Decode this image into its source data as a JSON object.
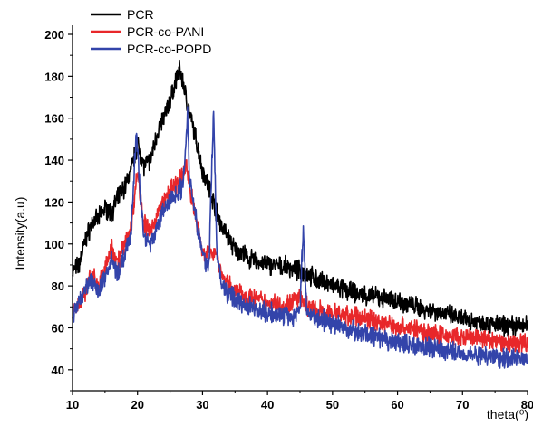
{
  "chart_data": {
    "type": "line",
    "title": "",
    "xlabel": "theta(⁰)",
    "ylabel": "Intensity(a.u)",
    "xlim": [
      10,
      80
    ],
    "ylim": [
      30,
      200
    ],
    "xticks": [
      "10",
      "20",
      "30",
      "40",
      "50",
      "60",
      "70",
      "80"
    ],
    "yticks": [
      "40",
      "60",
      "80",
      "100",
      "120",
      "140",
      "160",
      "180",
      "200"
    ],
    "grid": false,
    "legend_position": "top-left",
    "series": [
      {
        "name": "PCR",
        "color": "#000000",
        "points": [
          [
            10,
            87
          ],
          [
            11,
            90
          ],
          [
            12,
            102
          ],
          [
            13,
            110
          ],
          [
            14,
            112
          ],
          [
            15,
            117
          ],
          [
            16,
            115
          ],
          [
            17,
            122
          ],
          [
            18,
            127
          ],
          [
            19,
            135
          ],
          [
            20,
            148
          ],
          [
            21,
            137
          ],
          [
            22,
            140
          ],
          [
            23,
            153
          ],
          [
            24,
            160
          ],
          [
            25,
            168
          ],
          [
            26,
            179
          ],
          [
            26.5,
            183
          ],
          [
            27,
            177
          ],
          [
            28,
            162
          ],
          [
            29,
            150
          ],
          [
            30,
            135
          ],
          [
            31,
            127
          ],
          [
            32,
            117
          ],
          [
            33,
            108
          ],
          [
            34,
            103
          ],
          [
            35,
            97
          ],
          [
            36,
            96
          ],
          [
            37,
            93
          ],
          [
            38,
            92
          ],
          [
            39,
            91
          ],
          [
            40,
            90
          ],
          [
            41,
            90
          ],
          [
            42,
            89
          ],
          [
            43,
            89
          ],
          [
            44,
            88
          ],
          [
            45,
            87
          ],
          [
            46,
            86
          ],
          [
            47,
            84
          ],
          [
            48,
            82
          ],
          [
            49,
            82
          ],
          [
            50,
            80
          ],
          [
            52,
            78
          ],
          [
            54,
            76
          ],
          [
            56,
            75
          ],
          [
            58,
            74
          ],
          [
            60,
            73
          ],
          [
            62,
            71
          ],
          [
            64,
            69
          ],
          [
            66,
            68
          ],
          [
            68,
            66
          ],
          [
            70,
            64
          ],
          [
            72,
            63
          ],
          [
            74,
            62
          ],
          [
            76,
            61
          ],
          [
            78,
            61
          ],
          [
            80,
            61
          ]
        ]
      },
      {
        "name": "PCR-co-PANI",
        "color": "#e8272a",
        "points": [
          [
            10,
            68
          ],
          [
            11,
            72
          ],
          [
            12,
            78
          ],
          [
            13,
            85
          ],
          [
            14,
            80
          ],
          [
            15,
            88
          ],
          [
            16,
            98
          ],
          [
            17,
            92
          ],
          [
            18,
            100
          ],
          [
            19,
            108
          ],
          [
            20,
            135
          ],
          [
            21,
            110
          ],
          [
            22,
            105
          ],
          [
            23,
            114
          ],
          [
            24,
            120
          ],
          [
            25,
            125
          ],
          [
            26,
            128
          ],
          [
            27,
            133
          ],
          [
            27.5,
            138
          ],
          [
            28,
            128
          ],
          [
            29,
            112
          ],
          [
            30,
            96
          ],
          [
            31,
            95
          ],
          [
            32,
            97
          ],
          [
            33,
            85
          ],
          [
            34,
            80
          ],
          [
            35,
            78
          ],
          [
            36,
            76
          ],
          [
            37,
            75
          ],
          [
            38,
            74
          ],
          [
            39,
            73
          ],
          [
            40,
            72
          ],
          [
            41,
            72
          ],
          [
            42,
            71
          ],
          [
            43,
            71
          ],
          [
            44,
            73
          ],
          [
            45,
            74
          ],
          [
            46,
            70
          ],
          [
            48,
            68
          ],
          [
            50,
            67
          ],
          [
            52,
            66
          ],
          [
            54,
            65
          ],
          [
            56,
            64
          ],
          [
            58,
            62
          ],
          [
            60,
            61
          ],
          [
            62,
            60
          ],
          [
            64,
            58
          ],
          [
            66,
            57
          ],
          [
            68,
            56
          ],
          [
            70,
            55
          ],
          [
            72,
            55
          ],
          [
            74,
            54
          ],
          [
            76,
            53
          ],
          [
            78,
            53
          ],
          [
            80,
            53
          ]
        ]
      },
      {
        "name": "PCR-co-POPD",
        "color": "#3344aa",
        "points": [
          [
            10,
            65
          ],
          [
            11,
            72
          ],
          [
            12,
            80
          ],
          [
            13,
            82
          ],
          [
            14,
            77
          ],
          [
            15,
            85
          ],
          [
            16,
            92
          ],
          [
            17,
            86
          ],
          [
            18,
            94
          ],
          [
            19,
            105
          ],
          [
            19.8,
            154
          ],
          [
            20.5,
            120
          ],
          [
            21,
            104
          ],
          [
            22,
            100
          ],
          [
            23,
            108
          ],
          [
            24,
            116
          ],
          [
            25,
            121
          ],
          [
            26,
            124
          ],
          [
            27,
            128
          ],
          [
            27.7,
            162
          ],
          [
            28,
            132
          ],
          [
            29,
            113
          ],
          [
            30,
            94
          ],
          [
            31,
            90
          ],
          [
            31.7,
            165
          ],
          [
            32.2,
            95
          ],
          [
            33,
            80
          ],
          [
            34,
            76
          ],
          [
            35,
            74
          ],
          [
            36,
            72
          ],
          [
            37,
            71
          ],
          [
            38,
            70
          ],
          [
            39,
            68
          ],
          [
            40,
            67
          ],
          [
            41,
            67
          ],
          [
            42,
            66
          ],
          [
            43,
            66
          ],
          [
            44,
            65
          ],
          [
            45,
            70
          ],
          [
            45.5,
            108
          ],
          [
            46,
            68
          ],
          [
            48,
            64
          ],
          [
            50,
            62
          ],
          [
            52,
            60
          ],
          [
            54,
            58
          ],
          [
            56,
            56
          ],
          [
            58,
            54
          ],
          [
            60,
            53
          ],
          [
            62,
            52
          ],
          [
            64,
            51
          ],
          [
            66,
            50
          ],
          [
            68,
            49
          ],
          [
            70,
            48
          ],
          [
            72,
            47
          ],
          [
            74,
            47
          ],
          [
            76,
            46
          ],
          [
            78,
            46
          ],
          [
            80,
            45
          ]
        ]
      }
    ]
  }
}
